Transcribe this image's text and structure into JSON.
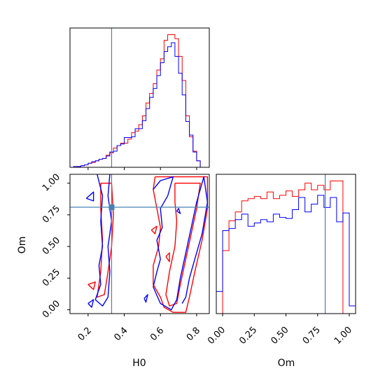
{
  "chart_data": [
    {
      "panel": "H0 marginal",
      "type": "histogram",
      "xlim": [
        0.1,
        0.87
      ],
      "truth_x": 0.33,
      "series": [
        {
          "color": "#ff0000",
          "bin_edges": [
            0.1,
            0.12,
            0.14,
            0.16,
            0.18,
            0.2,
            0.22,
            0.24,
            0.26,
            0.28,
            0.3,
            0.32,
            0.34,
            0.36,
            0.38,
            0.4,
            0.42,
            0.44,
            0.46,
            0.48,
            0.5,
            0.52,
            0.54,
            0.56,
            0.58,
            0.6,
            0.62,
            0.64,
            0.66,
            0.68,
            0.7,
            0.72,
            0.74,
            0.76,
            0.78,
            0.8,
            0.82,
            0.84
          ],
          "counts": [
            0,
            0,
            1,
            2,
            3,
            5,
            6,
            8,
            10,
            11,
            15,
            18,
            24,
            27,
            30,
            30,
            35,
            43,
            45,
            53,
            64,
            80,
            92,
            104,
            121,
            135,
            158,
            165,
            165,
            160,
            138,
            108,
            64,
            38,
            20,
            8,
            0
          ]
        },
        {
          "color": "#0000ff",
          "bin_edges": [
            0.1,
            0.12,
            0.14,
            0.16,
            0.18,
            0.2,
            0.22,
            0.24,
            0.26,
            0.28,
            0.3,
            0.32,
            0.34,
            0.36,
            0.38,
            0.4,
            0.42,
            0.44,
            0.46,
            0.48,
            0.5,
            0.52,
            0.54,
            0.56,
            0.58,
            0.6,
            0.62,
            0.64,
            0.66,
            0.68,
            0.7,
            0.72,
            0.74,
            0.76,
            0.78,
            0.8,
            0.82,
            0.84
          ],
          "counts": [
            0,
            1,
            1,
            2,
            3,
            5,
            7,
            8,
            10,
            11,
            14,
            19,
            20,
            27,
            29,
            37,
            37,
            38,
            48,
            48,
            58,
            73,
            87,
            98,
            114,
            130,
            144,
            150,
            155,
            138,
            117,
            90,
            57,
            40,
            19,
            8,
            0
          ]
        }
      ]
    },
    {
      "panel": "H0 vs Om contours",
      "type": "contour",
      "xlabel": "H0",
      "ylabel": "Om",
      "xlim": [
        0.1,
        0.87
      ],
      "ylim": [
        -0.03,
        1.07
      ],
      "xticks": [
        "0.2",
        "0.4",
        "0.6",
        "0.8"
      ],
      "xtick_values": [
        0.2,
        0.4,
        0.6,
        0.8
      ],
      "yticks": [
        "0.00",
        "0.25",
        "0.50",
        "0.75",
        "1.00"
      ],
      "ytick_values": [
        0.0,
        0.25,
        0.5,
        0.75,
        1.0
      ],
      "truth": [
        0.33,
        0.81
      ],
      "series": [
        {
          "color": "#ff0000",
          "paths": [
            [
              [
                0.57,
                1.05
              ],
              [
                0.86,
                1.05
              ],
              [
                0.86,
                0.8
              ],
              [
                0.83,
                0.55
              ],
              [
                0.79,
                0.3
              ],
              [
                0.76,
                0.1
              ],
              [
                0.74,
                -0.02
              ],
              [
                0.67,
                -0.02
              ],
              [
                0.62,
                0.02
              ],
              [
                0.6,
                0.1
              ],
              [
                0.56,
                0.2
              ],
              [
                0.56,
                0.35
              ],
              [
                0.59,
                0.5
              ],
              [
                0.6,
                0.65
              ],
              [
                0.58,
                0.8
              ],
              [
                0.56,
                0.95
              ],
              [
                0.57,
                1.05
              ]
            ],
            [
              [
                0.68,
                1.0
              ],
              [
                0.82,
                1.0
              ],
              [
                0.8,
                0.8
              ],
              [
                0.77,
                0.6
              ],
              [
                0.74,
                0.4
              ],
              [
                0.71,
                0.2
              ],
              [
                0.69,
                0.05
              ],
              [
                0.65,
                0.03
              ],
              [
                0.63,
                0.12
              ],
              [
                0.65,
                0.3
              ],
              [
                0.68,
                0.5
              ],
              [
                0.69,
                0.7
              ],
              [
                0.68,
                0.85
              ],
              [
                0.68,
                1.0
              ]
            ],
            [
              [
                0.27,
                1.0
              ],
              [
                0.33,
                1.0
              ],
              [
                0.34,
                0.75
              ],
              [
                0.33,
                0.5
              ],
              [
                0.31,
                0.3
              ],
              [
                0.29,
                0.12
              ],
              [
                0.25,
                0.1
              ],
              [
                0.27,
                0.3
              ],
              [
                0.28,
                0.55
              ],
              [
                0.27,
                0.8
              ],
              [
                0.27,
                1.0
              ]
            ],
            [
              [
                0.2,
                0.2
              ],
              [
                0.24,
                0.22
              ],
              [
                0.23,
                0.16
              ],
              [
                0.2,
                0.2
              ]
            ],
            [
              [
                0.55,
                0.63
              ],
              [
                0.58,
                0.66
              ],
              [
                0.57,
                0.6
              ],
              [
                0.55,
                0.63
              ]
            ],
            [
              [
                0.63,
                0.42
              ],
              [
                0.65,
                0.45
              ],
              [
                0.65,
                0.38
              ],
              [
                0.63,
                0.42
              ]
            ]
          ]
        },
        {
          "color": "#0000ff",
          "paths": [
            [
              [
                0.56,
                0.95
              ],
              [
                0.6,
                1.02
              ],
              [
                0.67,
                1.05
              ],
              [
                0.64,
                0.9
              ],
              [
                0.6,
                0.8
              ],
              [
                0.61,
                0.65
              ],
              [
                0.58,
                0.55
              ],
              [
                0.6,
                0.4
              ],
              [
                0.58,
                0.3
              ],
              [
                0.56,
                0.18
              ],
              [
                0.6,
                0.05
              ],
              [
                0.66,
                0.0
              ],
              [
                0.69,
                0.08
              ],
              [
                0.71,
                0.25
              ],
              [
                0.74,
                0.45
              ],
              [
                0.77,
                0.65
              ],
              [
                0.8,
                0.85
              ],
              [
                0.84,
                1.05
              ],
              [
                0.86,
                0.85
              ],
              [
                0.83,
                0.6
              ],
              [
                0.79,
                0.4
              ],
              [
                0.76,
                0.25
              ],
              [
                0.74,
                0.1
              ],
              [
                0.72,
                0.05
              ]
            ],
            [
              [
                0.25,
                1.07
              ],
              [
                0.28,
                0.9
              ],
              [
                0.27,
                0.7
              ],
              [
                0.28,
                0.5
              ],
              [
                0.26,
                0.35
              ],
              [
                0.27,
                0.2
              ],
              [
                0.24,
                0.08
              ],
              [
                0.28,
                0.03
              ],
              [
                0.31,
                0.1
              ],
              [
                0.32,
                0.3
              ],
              [
                0.31,
                0.5
              ],
              [
                0.33,
                0.7
              ],
              [
                0.31,
                0.9
              ],
              [
                0.32,
                1.07
              ]
            ],
            [
              [
                0.19,
                0.88
              ],
              [
                0.23,
                0.93
              ],
              [
                0.23,
                0.86
              ],
              [
                0.19,
                0.88
              ]
            ],
            [
              [
                0.2,
                0.05
              ],
              [
                0.23,
                0.08
              ],
              [
                0.22,
                0.02
              ],
              [
                0.2,
                0.05
              ]
            ],
            [
              [
                0.51,
                0.09
              ],
              [
                0.53,
                0.12
              ],
              [
                0.52,
                0.06
              ],
              [
                0.51,
                0.09
              ]
            ],
            [
              [
                0.69,
                0.78
              ],
              [
                0.7,
                0.8
              ],
              [
                0.71,
                0.76
              ],
              [
                0.69,
                0.78
              ]
            ]
          ]
        }
      ]
    },
    {
      "panel": "Om marginal",
      "type": "histogram",
      "xlabel": "Om",
      "xlim": [
        -0.05,
        1.05
      ],
      "xticks": [
        "0.00",
        "0.25",
        "0.50",
        "0.75",
        "1.00"
      ],
      "xtick_values": [
        0.0,
        0.25,
        0.5,
        0.75,
        1.0
      ],
      "truth_x": 0.81,
      "series": [
        {
          "color": "#ff0000",
          "bin_edges": [
            -0.05,
            0.0,
            0.05,
            0.1,
            0.15,
            0.2,
            0.25,
            0.3,
            0.35,
            0.4,
            0.45,
            0.5,
            0.55,
            0.6,
            0.65,
            0.7,
            0.75,
            0.8,
            0.85,
            0.9,
            0.95,
            1.0,
            1.05
          ],
          "counts": [
            0,
            57,
            84,
            92,
            102,
            104,
            106,
            104,
            110,
            104,
            107,
            111,
            106,
            112,
            118,
            112,
            116,
            112,
            120,
            120,
            0,
            0
          ]
        },
        {
          "color": "#0000ff",
          "bin_edges": [
            -0.05,
            0.0,
            0.05,
            0.1,
            0.15,
            0.2,
            0.25,
            0.3,
            0.35,
            0.4,
            0.45,
            0.5,
            0.55,
            0.6,
            0.65,
            0.7,
            0.75,
            0.8,
            0.85,
            0.9,
            0.95,
            1.0,
            1.05
          ],
          "counts": [
            20,
            75,
            77,
            85,
            90,
            79,
            82,
            85,
            83,
            90,
            87,
            86,
            94,
            105,
            92,
            99,
            107,
            96,
            105,
            83,
            91,
            7
          ]
        }
      ]
    }
  ]
}
